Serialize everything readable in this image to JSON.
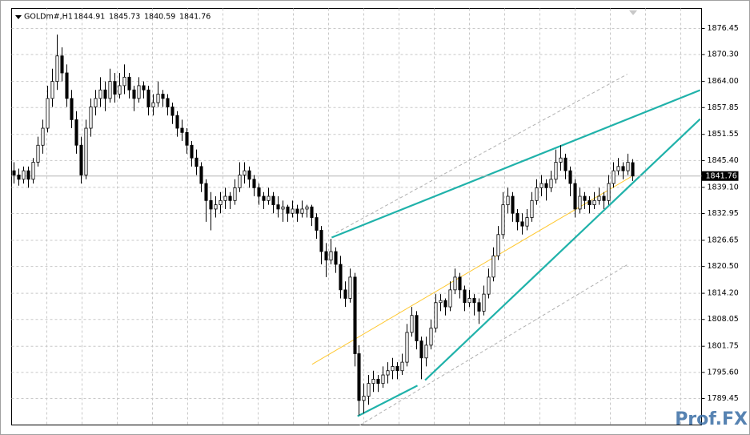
{
  "chart_data": {
    "type": "candlestick",
    "symbol": "GOLDm#,H1",
    "watermark": "Prof.FX",
    "xlim": [
      -0.5,
      143.5
    ],
    "ylim": [
      1783.24,
      1881.16
    ],
    "yticks": [
      1876.45,
      {
        "value": 1870.3,
        "label": "1870.30"
      },
      {
        "value": 1864.0,
        "label": "1864.00"
      },
      1857.85,
      1851.55,
      {
        "value": 1845.4,
        "label": "1845.40"
      },
      {
        "value": 1839.1,
        "label": "1839.10"
      },
      1832.95,
      1826.65,
      {
        "value": 1820.5,
        "label": "1820.50"
      },
      {
        "value": 1814.2,
        "label": "1814.20"
      },
      1808.05,
      1801.75,
      {
        "value": 1795.6,
        "label": "1795.60"
      },
      1789.45
    ],
    "grid": true,
    "up_color": "#ffffff",
    "down_color": "#000000",
    "outline_color": "#000000",
    "candles": [
      [
        1843,
        1845,
        1840,
        1842
      ],
      [
        1842,
        1843.5,
        1839.5,
        1841
      ],
      [
        1841,
        1844,
        1840,
        1843
      ],
      [
        1843,
        1844,
        1839,
        1841
      ],
      [
        1841,
        1846,
        1840,
        1845
      ],
      [
        1845,
        1851,
        1844,
        1849
      ],
      [
        1849,
        1855,
        1847,
        1853
      ],
      [
        1853,
        1863,
        1852,
        1860
      ],
      [
        1860,
        1867,
        1858,
        1864
      ],
      [
        1864,
        1875,
        1862,
        1870
      ],
      [
        1870,
        1872,
        1864,
        1866
      ],
      [
        1866,
        1868,
        1858,
        1860
      ],
      [
        1860,
        1862,
        1853,
        1855
      ],
      [
        1855,
        1857,
        1847,
        1849
      ],
      [
        1849,
        1851,
        1840,
        1842
      ],
      [
        1842,
        1855,
        1841,
        1853
      ],
      [
        1853,
        1860,
        1851,
        1858
      ],
      [
        1858,
        1862,
        1856,
        1860
      ],
      [
        1860,
        1865,
        1858,
        1862
      ],
      [
        1862,
        1864,
        1857,
        1860
      ],
      [
        1860,
        1867,
        1859,
        1864
      ],
      [
        1864,
        1866,
        1859,
        1861
      ],
      [
        1861,
        1866,
        1860,
        1863
      ],
      [
        1863,
        1868,
        1861,
        1865
      ],
      [
        1865,
        1866,
        1860,
        1862
      ],
      [
        1862,
        1863,
        1857,
        1860
      ],
      [
        1860,
        1865,
        1859,
        1863
      ],
      [
        1863,
        1864,
        1860,
        1862
      ],
      [
        1862,
        1863,
        1856,
        1858
      ],
      [
        1858,
        1861,
        1856,
        1859
      ],
      [
        1859,
        1864,
        1858,
        1861
      ],
      [
        1861,
        1862,
        1858,
        1860
      ],
      [
        1860,
        1861,
        1856,
        1858
      ],
      [
        1858,
        1859,
        1854,
        1856
      ],
      [
        1856,
        1857,
        1851,
        1853
      ],
      [
        1853,
        1855,
        1850,
        1852
      ],
      [
        1852,
        1853,
        1847,
        1849
      ],
      [
        1849,
        1850,
        1844,
        1846
      ],
      [
        1846,
        1848,
        1842,
        1844
      ],
      [
        1844,
        1845,
        1838,
        1840
      ],
      [
        1840,
        1841,
        1831,
        1836
      ],
      [
        1836,
        1838,
        1829,
        1834
      ],
      [
        1834,
        1837,
        1832,
        1835
      ],
      [
        1835,
        1838,
        1833,
        1836
      ],
      [
        1836,
        1839,
        1834,
        1837
      ],
      [
        1837,
        1838,
        1834,
        1836
      ],
      [
        1836,
        1841,
        1835,
        1839
      ],
      [
        1839,
        1845,
        1838,
        1842
      ],
      [
        1842,
        1845,
        1840,
        1843
      ],
      [
        1843,
        1844,
        1839,
        1841
      ],
      [
        1841,
        1842,
        1837,
        1839
      ],
      [
        1839,
        1840,
        1835,
        1837
      ],
      [
        1837,
        1838,
        1834,
        1836
      ],
      [
        1836,
        1839,
        1835,
        1837
      ],
      [
        1837,
        1838,
        1833,
        1835
      ],
      [
        1835,
        1837,
        1832,
        1834
      ],
      [
        1834,
        1836,
        1831,
        1834.5
      ],
      [
        1834.5,
        1835,
        1831,
        1833
      ],
      [
        1833,
        1836,
        1832,
        1834
      ],
      [
        1834,
        1835,
        1831,
        1833
      ],
      [
        1833,
        1836,
        1832,
        1834
      ],
      [
        1834,
        1835,
        1832,
        1834.5
      ],
      [
        1834.5,
        1835,
        1830,
        1832
      ],
      [
        1832,
        1833,
        1827,
        1829
      ],
      [
        1829,
        1830,
        1821,
        1824
      ],
      [
        1824,
        1826,
        1818,
        1822
      ],
      [
        1822,
        1827,
        1821,
        1824
      ],
      [
        1824,
        1825,
        1819,
        1821
      ],
      [
        1821,
        1823,
        1813,
        1815
      ],
      [
        1815,
        1817,
        1811,
        1813
      ],
      [
        1813,
        1820,
        1812,
        1818
      ],
      [
        1818,
        1819,
        1797,
        1800
      ],
      [
        1800,
        1802,
        1785.5,
        1789
      ],
      [
        1789,
        1793,
        1786,
        1790
      ],
      [
        1790,
        1795,
        1788,
        1793
      ],
      [
        1793,
        1796,
        1791,
        1794
      ],
      [
        1794,
        1795,
        1791,
        1793
      ],
      [
        1793,
        1797,
        1792,
        1795
      ],
      [
        1795,
        1798,
        1793,
        1796
      ],
      [
        1796,
        1799,
        1794,
        1797
      ],
      [
        1797,
        1798,
        1794,
        1796
      ],
      [
        1796,
        1800,
        1795,
        1798
      ],
      [
        1798,
        1807,
        1797,
        1805
      ],
      [
        1805,
        1811,
        1804,
        1809
      ],
      [
        1809,
        1810,
        1801,
        1803
      ],
      [
        1803,
        1804,
        1794,
        1799
      ],
      [
        1799,
        1804,
        1797,
        1802
      ],
      [
        1802,
        1808,
        1801,
        1806
      ],
      [
        1806,
        1814,
        1805,
        1812
      ],
      [
        1812,
        1814,
        1810,
        1812.5
      ],
      [
        1812.5,
        1813,
        1809,
        1811
      ],
      [
        1811,
        1817,
        1810,
        1815
      ],
      [
        1815,
        1820,
        1814,
        1818
      ],
      [
        1818,
        1819,
        1813,
        1815
      ],
      [
        1815,
        1816,
        1810,
        1812
      ],
      [
        1812,
        1815,
        1811,
        1813
      ],
      [
        1813,
        1814,
        1809,
        1812
      ],
      [
        1812,
        1813,
        1807,
        1810
      ],
      [
        1810,
        1816,
        1809,
        1814
      ],
      [
        1814,
        1820,
        1813,
        1818
      ],
      [
        1818,
        1825,
        1817,
        1823
      ],
      [
        1823,
        1830,
        1822,
        1828
      ],
      [
        1828,
        1838,
        1827,
        1835
      ],
      [
        1835,
        1839,
        1833,
        1837
      ],
      [
        1837,
        1838,
        1831,
        1833
      ],
      [
        1833,
        1834,
        1829,
        1831
      ],
      [
        1831,
        1833,
        1828,
        1830
      ],
      [
        1830,
        1834,
        1829,
        1832
      ],
      [
        1832,
        1838,
        1831,
        1836
      ],
      [
        1836,
        1841,
        1835,
        1839
      ],
      [
        1839,
        1842,
        1837,
        1840
      ],
      [
        1840,
        1841,
        1836,
        1839
      ],
      [
        1839,
        1843,
        1838,
        1841
      ],
      [
        1841,
        1848,
        1840,
        1845
      ],
      [
        1845,
        1849,
        1843,
        1846
      ],
      [
        1846,
        1847,
        1841,
        1843
      ],
      [
        1843,
        1844,
        1837,
        1840
      ],
      [
        1840,
        1841,
        1832,
        1834
      ],
      [
        1834,
        1839,
        1833,
        1837
      ],
      [
        1837,
        1838,
        1834,
        1836
      ],
      [
        1836,
        1837,
        1833,
        1835
      ],
      [
        1835,
        1838,
        1834,
        1836
      ],
      [
        1836,
        1839,
        1835,
        1837
      ],
      [
        1837,
        1838,
        1834,
        1836
      ],
      [
        1836,
        1842,
        1835,
        1840
      ],
      [
        1840,
        1845,
        1839,
        1843
      ],
      [
        1843,
        1846,
        1842,
        1844
      ],
      [
        1844,
        1845,
        1841,
        1843
      ],
      [
        1843,
        1847,
        1842,
        1845
      ],
      [
        1844.91,
        1845.73,
        1840.59,
        1841.76
      ]
    ],
    "trendlines": [
      {
        "color": "#20b2aa",
        "style": "solid",
        "x": [
          66.3,
          143.2
        ],
        "y": [
          1827.3,
          1861.95
        ]
      },
      {
        "color": "#20b2aa",
        "style": "solid",
        "x": [
          85.8,
          143.2
        ],
        "y": [
          1793.78,
          1855.17
        ]
      },
      {
        "color": "#20b2aa",
        "style": "solid",
        "x": [
          71.7,
          84.2
        ],
        "y": [
          1785.3,
          1792.5
        ]
      },
      {
        "color": "#ffc830",
        "style": "solid",
        "x": [
          62.2,
          128.8
        ],
        "y": [
          1797.5,
          1841.6
        ]
      },
      {
        "color": "#b0b0b0",
        "style": "dashed",
        "x": [
          67.2,
          128
        ],
        "y": [
          1828.4,
          1865.7
        ]
      },
      {
        "color": "#b0b0b0",
        "style": "dashed",
        "x": [
          72.2,
          128
        ],
        "y": [
          1783.2,
          1820.9
        ]
      }
    ]
  }
}
